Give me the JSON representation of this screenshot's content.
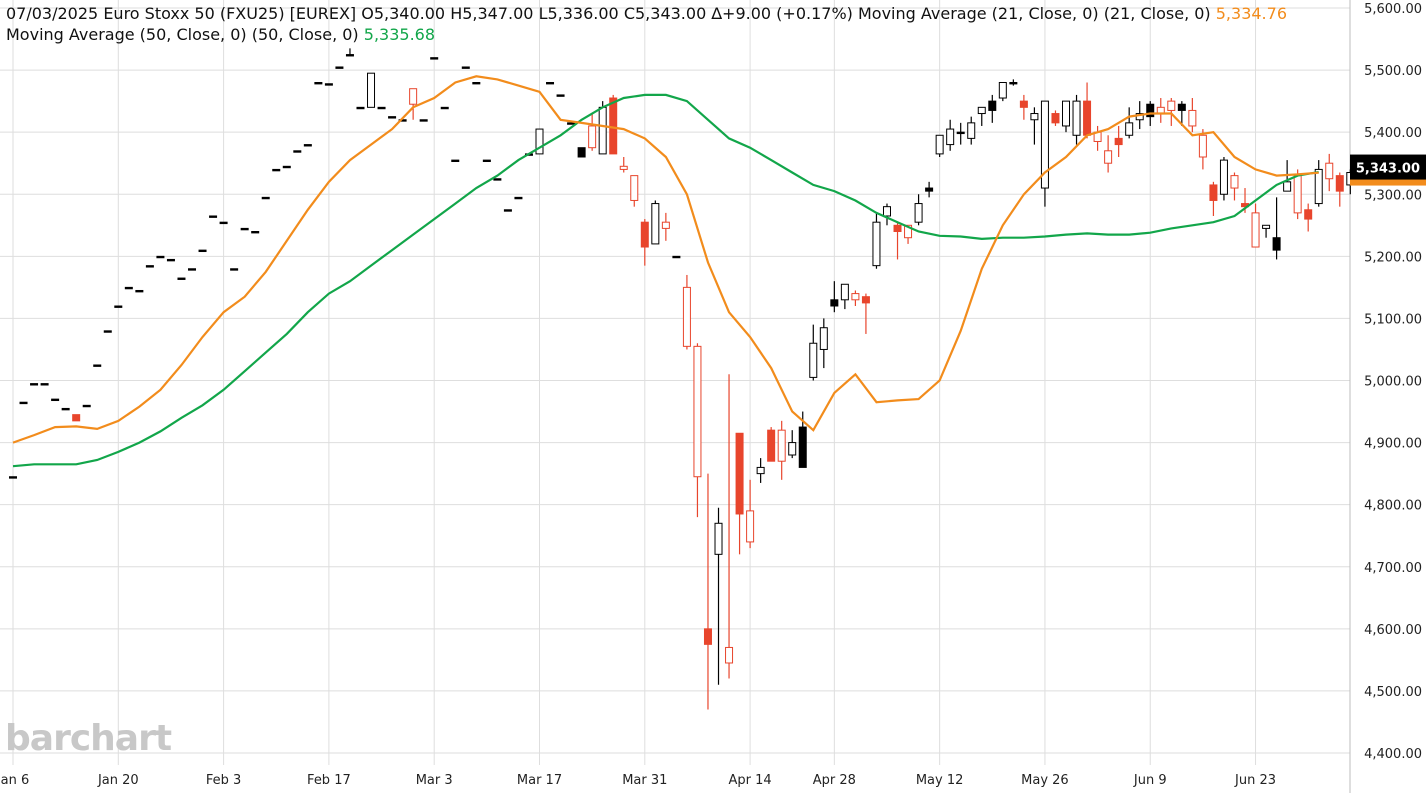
{
  "header": {
    "line1": {
      "date": "07/03/2025",
      "symbol": "Euro Stoxx 50 (FXU25) [EUREX]",
      "open": "O5,340.00",
      "high": "H5,347.00",
      "low": "L5,336.00",
      "close": "C5,343.00",
      "change": "∆+9.00 (+0.17%)",
      "ma21_label": "Moving Average (21, Close, 0)  (21, Close, 0)",
      "ma21_value": "5,334.76"
    },
    "line2": {
      "ma50_label": "Moving Average (50, Close, 0)  (50, Close, 0)",
      "ma50_value": "5,335.68"
    }
  },
  "logo": "barchart",
  "colors": {
    "up": "#000000",
    "down": "#e8452c",
    "ma21": "#f28c1c",
    "ma50": "#12a64a",
    "grid": "#dedede",
    "price_tag": "#000000"
  },
  "chart_data": {
    "type": "candlestick",
    "y_axis": {
      "min": 4400,
      "max": 5600,
      "ticks": [
        4400,
        4500,
        4600,
        4700,
        4800,
        4900,
        5000,
        5100,
        5200,
        5300,
        5400,
        5500,
        5600
      ],
      "tick_labels": [
        "4,400.00",
        "4,500.00",
        "4,600.00",
        "4,700.00",
        "4,800.00",
        "4,900.00",
        "5,000.00",
        "5,100.00",
        "5,200.00",
        "5,300.00",
        "5,400.00",
        "5,500.00",
        "5,600.00"
      ],
      "side": "right"
    },
    "x_axis": {
      "ticks": [
        {
          "label": "Jan 6",
          "bar": 0
        },
        {
          "label": "Jan 20",
          "bar": 10
        },
        {
          "label": "Feb 3",
          "bar": 20
        },
        {
          "label": "Feb 17",
          "bar": 30
        },
        {
          "label": "Mar 3",
          "bar": 40
        },
        {
          "label": "Mar 17",
          "bar": 50
        },
        {
          "label": "Mar 31",
          "bar": 60
        },
        {
          "label": "Apr 14",
          "bar": 70
        },
        {
          "label": "Apr 28",
          "bar": 78
        },
        {
          "label": "May 12",
          "bar": 88
        },
        {
          "label": "May 26",
          "bar": 98
        },
        {
          "label": "Jun 9",
          "bar": 108
        },
        {
          "label": "Jun 23",
          "bar": 118
        }
      ]
    },
    "last_price_label": "5,343.00",
    "last_price": 5343,
    "ma21_last": 5334.76,
    "grid": true,
    "candles": [
      [
        4845,
        4845,
        4845,
        4845
      ],
      [
        4965,
        4965,
        4965,
        4965
      ],
      [
        4995,
        4995,
        4995,
        4995
      ],
      [
        4995,
        4995,
        4995,
        4995
      ],
      [
        4970,
        4970,
        4970,
        4970
      ],
      [
        4955,
        4955,
        4955,
        4955
      ],
      [
        4945,
        4945,
        4935,
        4935
      ],
      [
        4960,
        4960,
        4960,
        4960
      ],
      [
        5025,
        5025,
        5025,
        5025
      ],
      [
        5080,
        5080,
        5080,
        5080
      ],
      [
        5120,
        5120,
        5120,
        5120
      ],
      [
        5150,
        5150,
        5150,
        5150
      ],
      [
        5145,
        5145,
        5145,
        5145
      ],
      [
        5185,
        5185,
        5185,
        5185
      ],
      [
        5200,
        5200,
        5200,
        5200
      ],
      [
        5195,
        5195,
        5195,
        5195
      ],
      [
        5165,
        5165,
        5165,
        5165
      ],
      [
        5180,
        5180,
        5180,
        5180
      ],
      [
        5210,
        5210,
        5210,
        5210
      ],
      [
        5265,
        5265,
        5265,
        5265
      ],
      [
        5255,
        5255,
        5255,
        5255
      ],
      [
        5180,
        5180,
        5180,
        5180
      ],
      [
        5245,
        5245,
        5245,
        5245
      ],
      [
        5240,
        5240,
        5240,
        5240
      ],
      [
        5295,
        5295,
        5295,
        5295
      ],
      [
        5340,
        5340,
        5340,
        5340
      ],
      [
        5345,
        5345,
        5345,
        5345
      ],
      [
        5370,
        5370,
        5370,
        5370
      ],
      [
        5380,
        5380,
        5380,
        5380
      ],
      [
        5480,
        5480,
        5480,
        5480
      ],
      [
        5478,
        5478,
        5478,
        5478
      ],
      [
        5505,
        5505,
        5505,
        5505
      ],
      [
        5525,
        5535,
        5525,
        5525
      ],
      [
        5440,
        5440,
        5440,
        5440
      ],
      [
        5440,
        5495,
        5440,
        5495
      ],
      [
        5440,
        5440,
        5440,
        5440
      ],
      [
        5425,
        5425,
        5425,
        5425
      ],
      [
        5420,
        5420,
        5420,
        5420
      ],
      [
        5470,
        5470,
        5420,
        5445
      ],
      [
        5420,
        5420,
        5420,
        5420
      ],
      [
        5520,
        5520,
        5520,
        5520
      ],
      [
        5440,
        5440,
        5440,
        5440
      ],
      [
        5355,
        5355,
        5355,
        5355
      ],
      [
        5505,
        5505,
        5505,
        5505
      ],
      [
        5480,
        5480,
        5480,
        5480
      ],
      [
        5355,
        5355,
        5355,
        5355
      ],
      [
        5325,
        5325,
        5325,
        5325
      ],
      [
        5275,
        5275,
        5275,
        5275
      ],
      [
        5295,
        5295,
        5295,
        5295
      ],
      [
        5365,
        5365,
        5365,
        5365
      ],
      [
        5365,
        5405,
        5365,
        5405
      ],
      [
        5480,
        5480,
        5480,
        5480
      ],
      [
        5460,
        5460,
        5460,
        5460
      ],
      [
        5415,
        5415,
        5415,
        5415
      ],
      [
        5360,
        5370,
        5360,
        5375
      ],
      [
        5410,
        5430,
        5370,
        5375
      ],
      [
        5365,
        5450,
        5365,
        5440
      ],
      [
        5455,
        5460,
        5370,
        5365
      ],
      [
        5345,
        5360,
        5335,
        5340
      ],
      [
        5330,
        5330,
        5280,
        5290
      ],
      [
        5255,
        5260,
        5185,
        5215
      ],
      [
        5220,
        5290,
        5220,
        5285
      ],
      [
        5255,
        5270,
        5225,
        5245
      ],
      [
        5200,
        5200,
        5200,
        5200
      ],
      [
        5150,
        5170,
        5050,
        5055
      ],
      [
        5055,
        5060,
        4780,
        4845
      ],
      [
        4600,
        4850,
        4470,
        4575
      ],
      [
        4720,
        4795,
        4510,
        4770
      ],
      [
        4570,
        5010,
        4520,
        4545
      ],
      [
        4915,
        4915,
        4720,
        4785
      ],
      [
        4790,
        4840,
        4730,
        4740
      ],
      [
        4850,
        4875,
        4835,
        4860
      ],
      [
        4920,
        4925,
        4870,
        4870
      ],
      [
        4920,
        4935,
        4840,
        4870
      ],
      [
        4880,
        4920,
        4875,
        4900
      ],
      [
        4860,
        4950,
        4860,
        4925
      ],
      [
        5005,
        5090,
        5000,
        5060
      ],
      [
        5050,
        5100,
        5020,
        5085
      ],
      [
        5120,
        5160,
        5110,
        5130
      ],
      [
        5130,
        5155,
        5115,
        5155
      ],
      [
        5140,
        5145,
        5120,
        5130
      ],
      [
        5135,
        5140,
        5075,
        5125
      ],
      [
        5185,
        5270,
        5180,
        5255
      ],
      [
        5265,
        5285,
        5250,
        5280
      ],
      [
        5250,
        5255,
        5195,
        5240
      ],
      [
        5250,
        5250,
        5220,
        5230
      ],
      [
        5255,
        5300,
        5250,
        5285
      ],
      [
        5305,
        5320,
        5295,
        5310
      ],
      [
        5365,
        5395,
        5360,
        5395
      ],
      [
        5380,
        5420,
        5370,
        5405
      ],
      [
        5400,
        5415,
        5380,
        5400
      ],
      [
        5390,
        5425,
        5380,
        5415
      ],
      [
        5430,
        5440,
        5410,
        5440
      ],
      [
        5435,
        5460,
        5415,
        5450
      ],
      [
        5455,
        5480,
        5450,
        5480
      ],
      [
        5480,
        5485,
        5475,
        5480
      ],
      [
        5450,
        5460,
        5420,
        5440
      ],
      [
        5420,
        5440,
        5380,
        5430
      ],
      [
        5310,
        5450,
        5280,
        5450
      ],
      [
        5430,
        5435,
        5410,
        5415
      ],
      [
        5410,
        5450,
        5400,
        5450
      ],
      [
        5395,
        5460,
        5380,
        5450
      ],
      [
        5450,
        5480,
        5390,
        5395
      ],
      [
        5400,
        5410,
        5370,
        5385
      ],
      [
        5370,
        5395,
        5335,
        5350
      ],
      [
        5390,
        5410,
        5360,
        5380
      ],
      [
        5395,
        5440,
        5390,
        5415
      ],
      [
        5420,
        5450,
        5405,
        5430
      ],
      [
        5425,
        5450,
        5410,
        5445
      ],
      [
        5440,
        5455,
        5415,
        5430
      ],
      [
        5450,
        5455,
        5410,
        5435
      ],
      [
        5435,
        5450,
        5410,
        5445
      ],
      [
        5435,
        5455,
        5400,
        5410
      ],
      [
        5395,
        5405,
        5340,
        5360
      ],
      [
        5315,
        5320,
        5265,
        5290
      ],
      [
        5300,
        5360,
        5290,
        5355
      ],
      [
        5330,
        5335,
        5290,
        5310
      ],
      [
        5285,
        5310,
        5270,
        5280
      ],
      [
        5270,
        5285,
        5215,
        5215
      ],
      [
        5245,
        5250,
        5230,
        5250
      ],
      [
        5210,
        5295,
        5195,
        5230
      ],
      [
        5305,
        5355,
        5305,
        5320
      ],
      [
        5330,
        5340,
        5260,
        5270
      ],
      [
        5275,
        5285,
        5240,
        5260
      ],
      [
        5285,
        5355,
        5280,
        5340
      ],
      [
        5350,
        5365,
        5305,
        5325
      ],
      [
        5330,
        5335,
        5280,
        5305
      ],
      [
        5315,
        5340,
        5300,
        5335
      ],
      [
        5340,
        5347,
        5336,
        5343
      ]
    ],
    "ma21": [
      [
        0,
        4900
      ],
      [
        2,
        4912
      ],
      [
        4,
        4925
      ],
      [
        6,
        4926
      ],
      [
        8,
        4922
      ],
      [
        10,
        4935
      ],
      [
        12,
        4958
      ],
      [
        14,
        4985
      ],
      [
        16,
        5025
      ],
      [
        18,
        5070
      ],
      [
        20,
        5110
      ],
      [
        22,
        5135
      ],
      [
        24,
        5175
      ],
      [
        26,
        5225
      ],
      [
        28,
        5275
      ],
      [
        30,
        5320
      ],
      [
        32,
        5355
      ],
      [
        34,
        5380
      ],
      [
        36,
        5405
      ],
      [
        38,
        5440
      ],
      [
        40,
        5455
      ],
      [
        42,
        5480
      ],
      [
        44,
        5490
      ],
      [
        46,
        5485
      ],
      [
        48,
        5475
      ],
      [
        50,
        5465
      ],
      [
        52,
        5420
      ],
      [
        54,
        5415
      ],
      [
        56,
        5410
      ],
      [
        58,
        5405
      ],
      [
        60,
        5390
      ],
      [
        62,
        5360
      ],
      [
        64,
        5300
      ],
      [
        66,
        5190
      ],
      [
        68,
        5110
      ],
      [
        70,
        5070
      ],
      [
        72,
        5020
      ],
      [
        74,
        4950
      ],
      [
        76,
        4920
      ],
      [
        78,
        4980
      ],
      [
        80,
        5010
      ],
      [
        82,
        4965
      ],
      [
        84,
        4968
      ],
      [
        86,
        4970
      ],
      [
        88,
        5000
      ],
      [
        90,
        5080
      ],
      [
        92,
        5180
      ],
      [
        94,
        5250
      ],
      [
        96,
        5300
      ],
      [
        98,
        5335
      ],
      [
        100,
        5360
      ],
      [
        102,
        5395
      ],
      [
        104,
        5405
      ],
      [
        106,
        5425
      ],
      [
        108,
        5430
      ],
      [
        110,
        5430
      ],
      [
        112,
        5395
      ],
      [
        114,
        5400
      ],
      [
        116,
        5360
      ],
      [
        118,
        5340
      ],
      [
        120,
        5330
      ],
      [
        122,
        5332
      ],
      [
        124,
        5334.76
      ]
    ],
    "ma50": [
      [
        0,
        4862
      ],
      [
        2,
        4865
      ],
      [
        4,
        4865
      ],
      [
        6,
        4865
      ],
      [
        8,
        4872
      ],
      [
        10,
        4885
      ],
      [
        12,
        4900
      ],
      [
        14,
        4918
      ],
      [
        16,
        4940
      ],
      [
        18,
        4960
      ],
      [
        20,
        4985
      ],
      [
        22,
        5015
      ],
      [
        24,
        5045
      ],
      [
        26,
        5075
      ],
      [
        28,
        5110
      ],
      [
        30,
        5140
      ],
      [
        32,
        5160
      ],
      [
        34,
        5185
      ],
      [
        36,
        5210
      ],
      [
        38,
        5235
      ],
      [
        40,
        5260
      ],
      [
        42,
        5285
      ],
      [
        44,
        5310
      ],
      [
        46,
        5330
      ],
      [
        48,
        5355
      ],
      [
        50,
        5375
      ],
      [
        52,
        5395
      ],
      [
        54,
        5420
      ],
      [
        56,
        5440
      ],
      [
        58,
        5455
      ],
      [
        60,
        5460
      ],
      [
        62,
        5460
      ],
      [
        64,
        5450
      ],
      [
        66,
        5420
      ],
      [
        68,
        5390
      ],
      [
        70,
        5375
      ],
      [
        72,
        5355
      ],
      [
        74,
        5335
      ],
      [
        76,
        5315
      ],
      [
        78,
        5305
      ],
      [
        80,
        5290
      ],
      [
        82,
        5270
      ],
      [
        84,
        5255
      ],
      [
        86,
        5240
      ],
      [
        88,
        5233
      ],
      [
        90,
        5232
      ],
      [
        92,
        5228
      ],
      [
        94,
        5230
      ],
      [
        96,
        5230
      ],
      [
        98,
        5232
      ],
      [
        100,
        5235
      ],
      [
        102,
        5237
      ],
      [
        104,
        5235
      ],
      [
        106,
        5235
      ],
      [
        108,
        5238
      ],
      [
        110,
        5245
      ],
      [
        112,
        5250
      ],
      [
        114,
        5255
      ],
      [
        116,
        5265
      ],
      [
        118,
        5290
      ],
      [
        120,
        5315
      ],
      [
        122,
        5330
      ],
      [
        124,
        5335.68
      ]
    ]
  }
}
